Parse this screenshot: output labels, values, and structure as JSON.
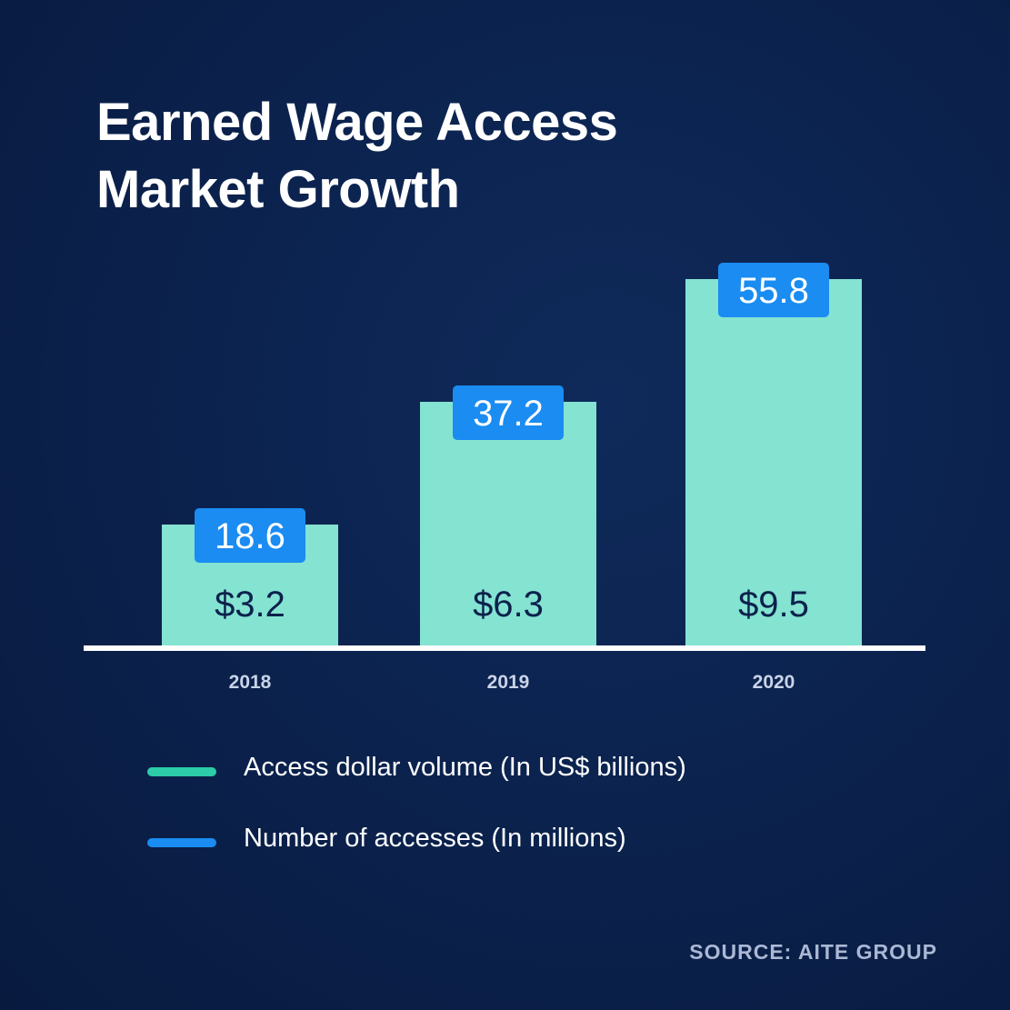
{
  "title": {
    "line1": "Earned Wage Access",
    "line2": "Market Growth"
  },
  "source": "SOURCE: AITE GROUP",
  "colors": {
    "bar": "#84e3d1",
    "badge": "#1a8cf2",
    "bar_text": "#0b214c",
    "axis": "#ffffff",
    "tick": "#c9d4e8",
    "legend_volume": "#2ccca8",
    "legend_accesses": "#1a8cf2"
  },
  "legend": [
    {
      "label": "Access dollar volume (In US$ billions)",
      "color": "#2ccca8"
    },
    {
      "label": "Number of accesses (In millions)",
      "color": "#1a8cf2"
    }
  ],
  "chart_data": {
    "type": "bar",
    "title": "Earned Wage Access Market Growth",
    "categories": [
      "2018",
      "2019",
      "2020"
    ],
    "series": [
      {
        "name": "Access dollar volume (In US$ billions)",
        "values": [
          3.2,
          6.3,
          9.5
        ],
        "labels": [
          "$3.2",
          "$6.3",
          "$9.5"
        ],
        "color": "#84e3d1"
      },
      {
        "name": "Number of accesses (In millions)",
        "values": [
          18.6,
          37.2,
          55.8
        ],
        "labels": [
          "18.6",
          "37.2",
          "55.8"
        ],
        "color": "#1a8cf2"
      }
    ],
    "ylim": [
      0,
      55.8
    ],
    "grid": false,
    "legend_position": "bottom"
  }
}
